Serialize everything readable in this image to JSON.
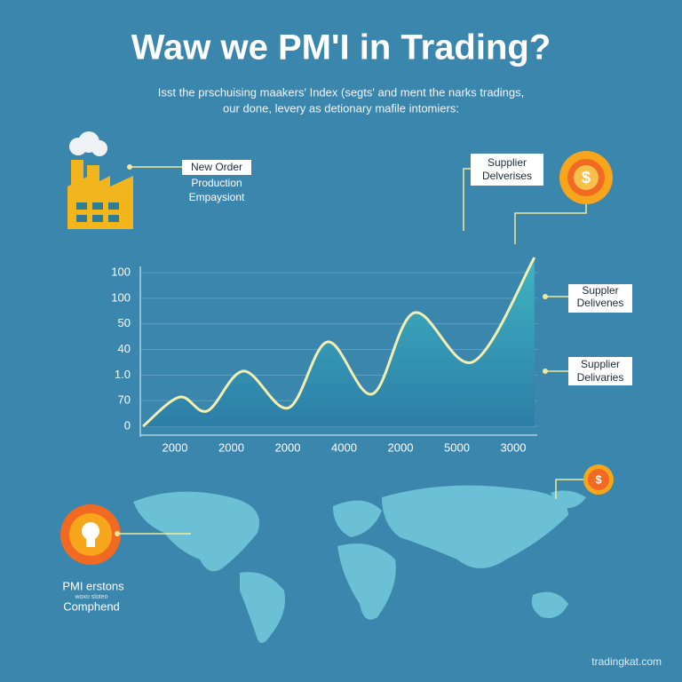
{
  "header": {
    "title": "Waw we PM'I in Trading?",
    "subtitle_lines": [
      "Isst the prschuising maakers' Index (segts' and ment the narks tradings,",
      "our done, levery as detionary mafile intomiers:"
    ]
  },
  "callouts": {
    "factory": [
      "New Order",
      "Production",
      "Empaysiont"
    ],
    "top_right": [
      "Supplier",
      "Delverises"
    ],
    "right_1": [
      "Suppler",
      "Delivenes"
    ],
    "right_2": [
      "Supplier",
      "Delivaries"
    ],
    "bottom_left": [
      "PMI erstons",
      "woxo sloteo",
      "Comphend"
    ]
  },
  "chart_data": {
    "type": "area",
    "categories": [
      "2000",
      "2000",
      "2000",
      "4000",
      "2000",
      "5000",
      "3000"
    ],
    "y_axis_labels": [
      "100",
      "100",
      "50",
      "40",
      "1.0",
      "70",
      "0"
    ],
    "x": [
      -0.6,
      0.05,
      0.55,
      1.2,
      2.0,
      2.7,
      3.5,
      4.25,
      5.3,
      6.4
    ],
    "values": [
      0,
      19,
      10,
      36,
      12,
      55,
      21,
      74,
      42,
      110
    ],
    "xlim": [
      -0.65,
      6.45
    ],
    "ylim": [
      0,
      110
    ],
    "color": "#2fa3b8",
    "line_color": "#f3efb0"
  },
  "footer": "tradingkat.com"
}
